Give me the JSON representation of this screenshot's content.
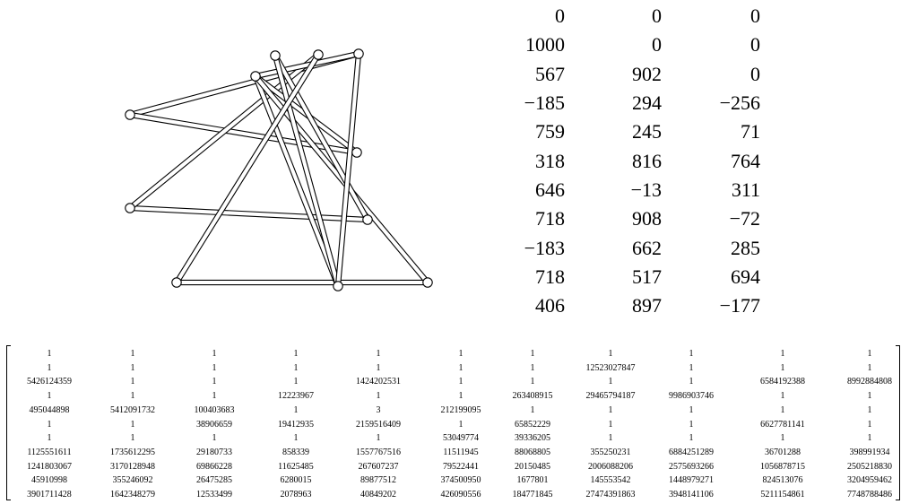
{
  "coordinates": [
    [
      "0",
      "0",
      "0"
    ],
    [
      "1000",
      "0",
      "0"
    ],
    [
      "567",
      "902",
      "0"
    ],
    [
      "−185",
      "294",
      "−256"
    ],
    [
      "759",
      "245",
      "71"
    ],
    [
      "318",
      "816",
      "764"
    ],
    [
      "646",
      "−13",
      "311"
    ],
    [
      "718",
      "908",
      "−72"
    ],
    [
      "−183",
      "662",
      "285"
    ],
    [
      "718",
      "517",
      "694"
    ],
    [
      "406",
      "897",
      "−177"
    ]
  ],
  "matrix": [
    [
      "1",
      "1",
      "1",
      "1",
      "1",
      "1",
      "1",
      "1",
      "1",
      "1",
      "1"
    ],
    [
      "1",
      "1",
      "1",
      "1",
      "1",
      "1",
      "1",
      "12523027847",
      "1",
      "1",
      "1"
    ],
    [
      "5426124359",
      "1",
      "1",
      "1",
      "1424202531",
      "1",
      "1",
      "1",
      "1",
      "6584192388",
      "8992884808"
    ],
    [
      "1",
      "1",
      "1",
      "12223967",
      "1",
      "1",
      "263408915",
      "29465794187",
      "9986903746",
      "1",
      "1"
    ],
    [
      "495044898",
      "5412091732",
      "100403683",
      "1",
      "3",
      "212199095",
      "1",
      "1",
      "1",
      "1",
      "1"
    ],
    [
      "1",
      "1",
      "38906659",
      "19412935",
      "2159516409",
      "1",
      "65852229",
      "1",
      "1",
      "6627781141",
      "1"
    ],
    [
      "1",
      "1",
      "1",
      "1",
      "1",
      "53049774",
      "39336205",
      "1",
      "1",
      "1",
      "1"
    ],
    [
      "1125551611",
      "1735612295",
      "29180733",
      "858339",
      "1557767516",
      "11511945",
      "88068805",
      "355250231",
      "6884251289",
      "36701288",
      "398991934"
    ],
    [
      "1241803067",
      "3170128948",
      "69866228",
      "11625485",
      "267607237",
      "79522441",
      "20150485",
      "2006088206",
      "2575693266",
      "1056878715",
      "2505218830"
    ],
    [
      "45910998",
      "355246092",
      "26475285",
      "6280015",
      "89877512",
      "374500950",
      "1677801",
      "145553542",
      "1448979271",
      "824513076",
      "3204959462"
    ],
    [
      "3901711428",
      "1642348279",
      "12533499",
      "2078963",
      "40849202",
      "426090556",
      "184771845",
      "27474391863",
      "3948141106",
      "5211154861",
      "7748788486"
    ]
  ]
}
